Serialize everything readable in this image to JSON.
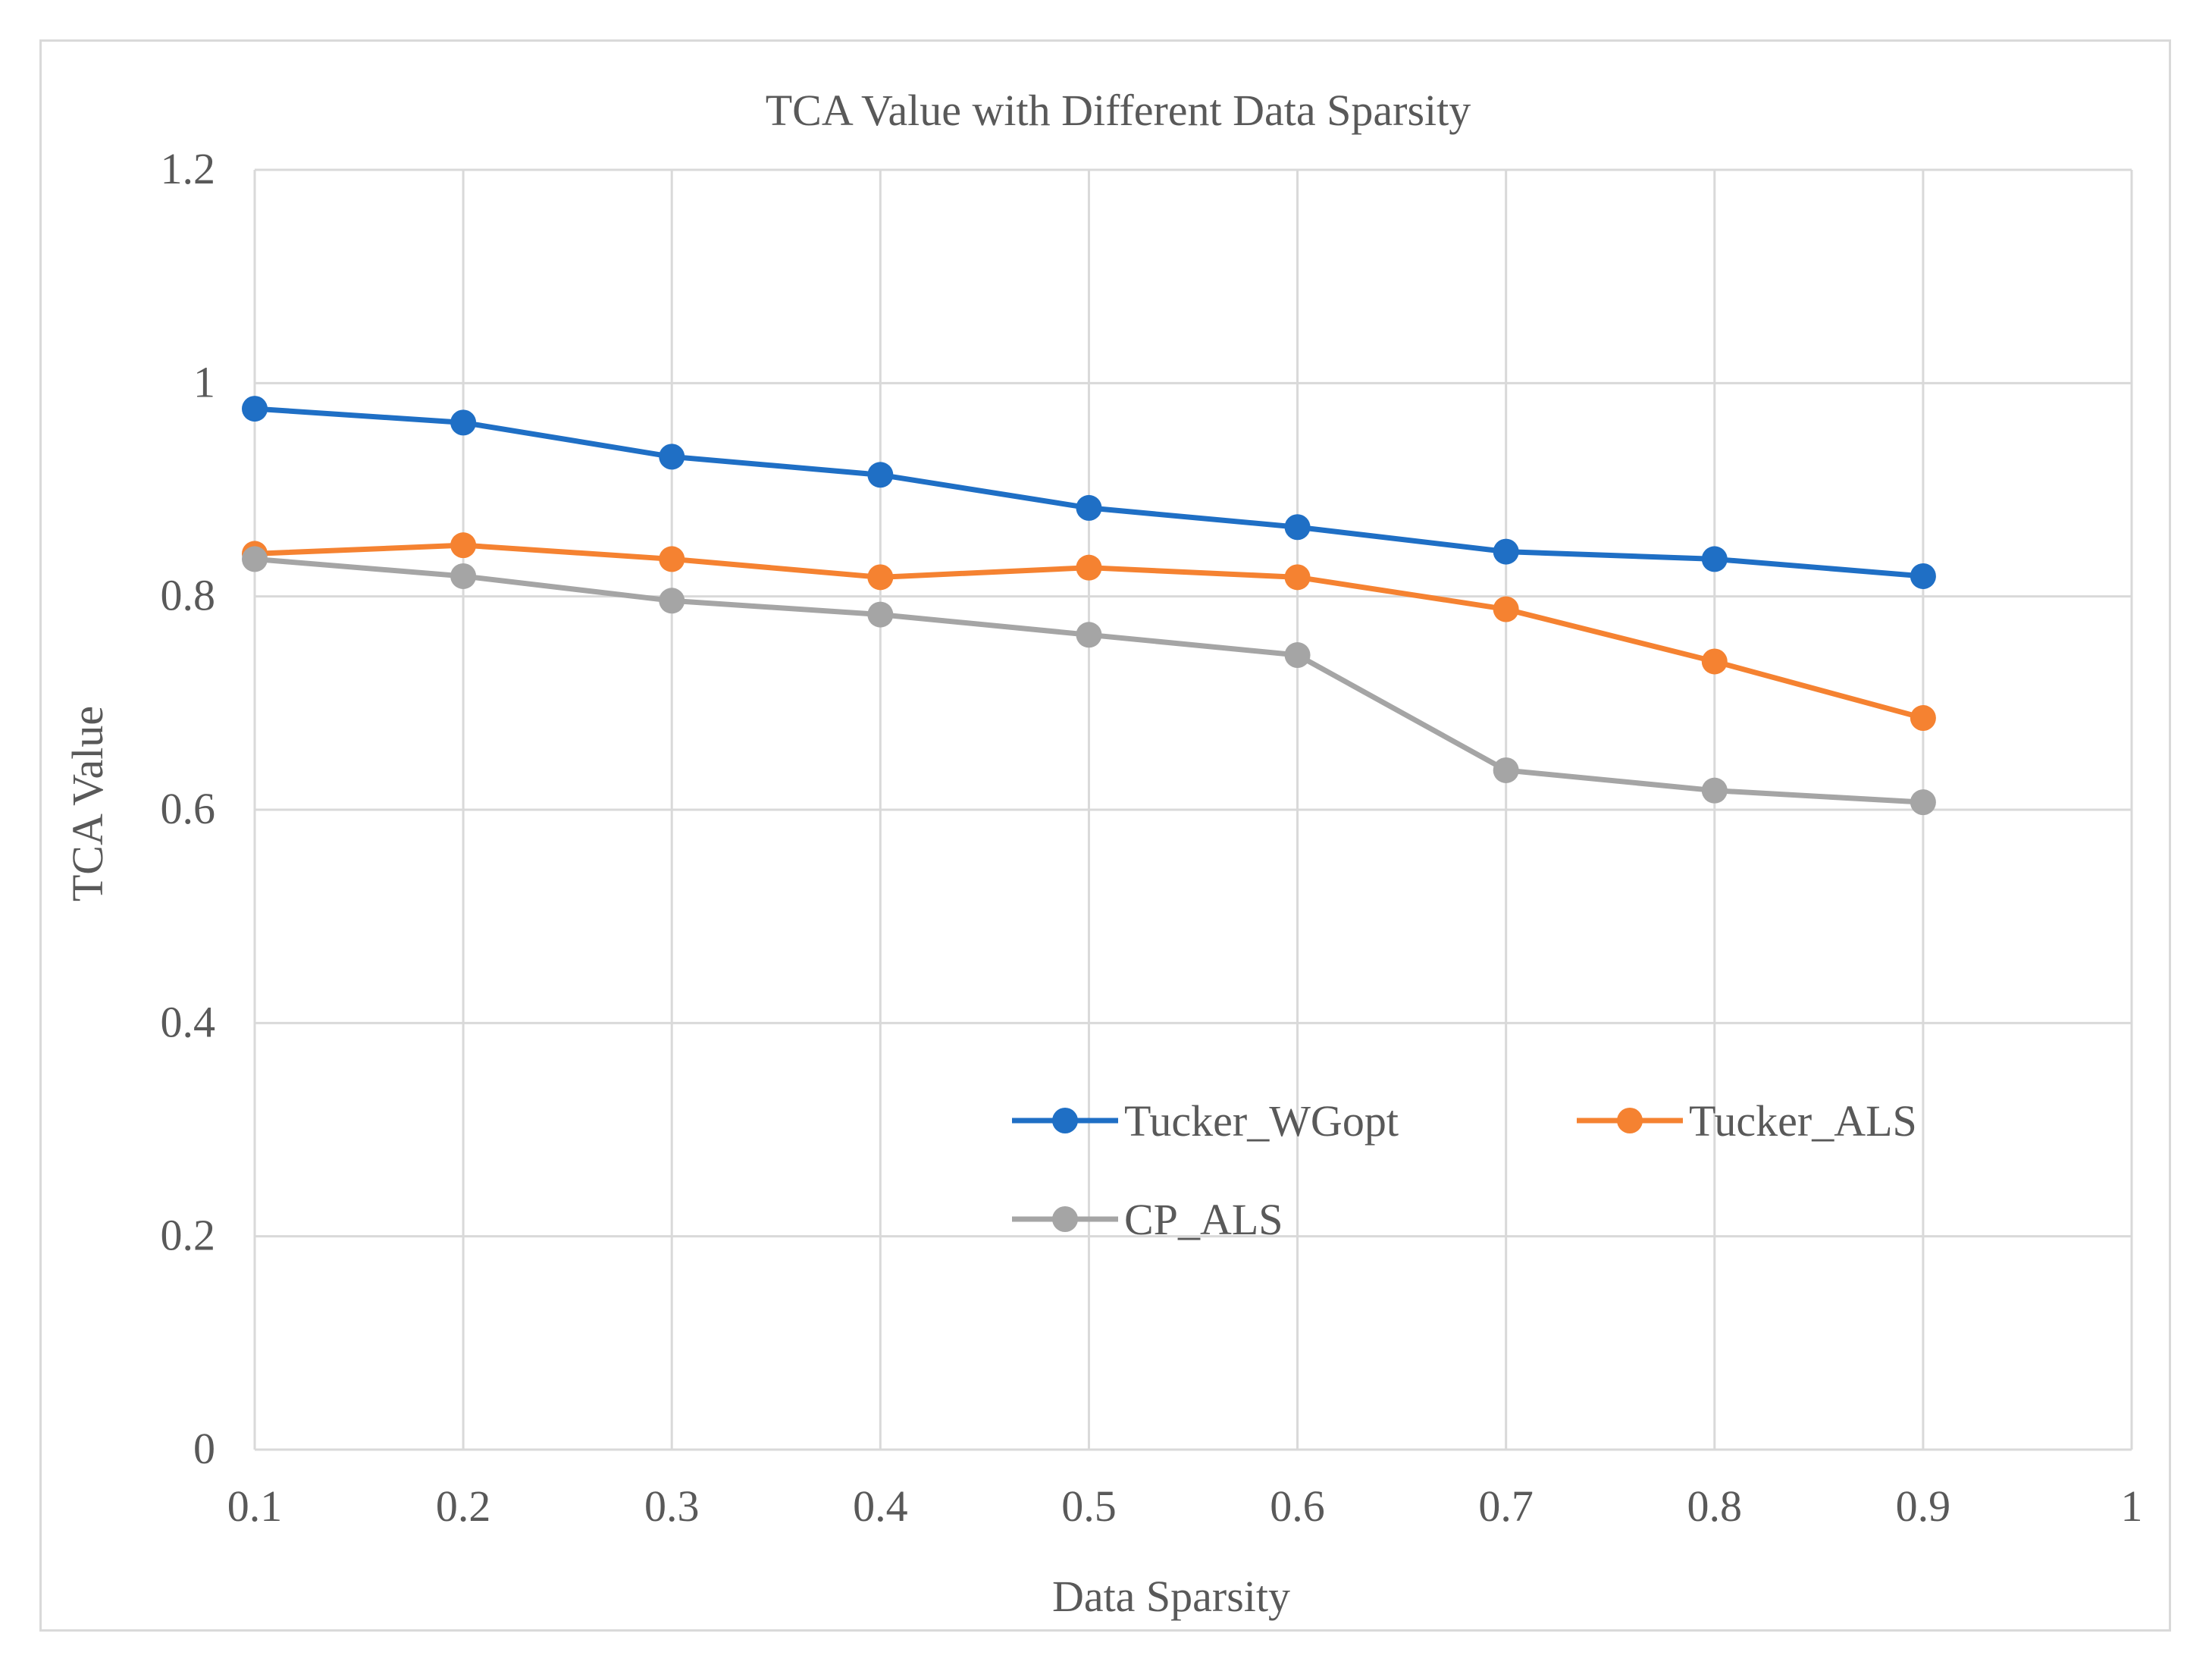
{
  "chart_data": {
    "type": "line",
    "title": "TCA Value with Different Data Sparsity",
    "xlabel": "Data Sparsity",
    "ylabel": "TCA Value",
    "xlim": [
      0.1,
      1
    ],
    "ylim": [
      0,
      1.2
    ],
    "x_ticks": [
      "0.1",
      "0.2",
      "0.3",
      "0.4",
      "0.5",
      "0.6",
      "0.7",
      "0.8",
      "0.9",
      "1"
    ],
    "y_ticks": [
      "0",
      "0.2",
      "0.4",
      "0.6",
      "0.8",
      "1",
      "1.2"
    ],
    "grid": true,
    "legend_position": "bottom-right inside",
    "x": [
      0.1,
      0.2,
      0.3,
      0.4,
      0.5,
      0.6,
      0.7,
      0.8,
      0.9
    ],
    "series": [
      {
        "name": "Tucker_WGopt",
        "color": "#1f6fc5",
        "values": [
          0.976,
          0.963,
          0.931,
          0.914,
          0.883,
          0.865,
          0.842,
          0.835,
          0.819
        ]
      },
      {
        "name": "Tucker_ALS",
        "color": "#f58231",
        "values": [
          0.84,
          0.848,
          0.835,
          0.818,
          0.827,
          0.818,
          0.788,
          0.739,
          0.686
        ]
      },
      {
        "name": "CP_ALS",
        "color": "#a5a5a5",
        "values": [
          0.835,
          0.819,
          0.796,
          0.783,
          0.764,
          0.745,
          0.637,
          0.618,
          0.607
        ]
      }
    ]
  }
}
